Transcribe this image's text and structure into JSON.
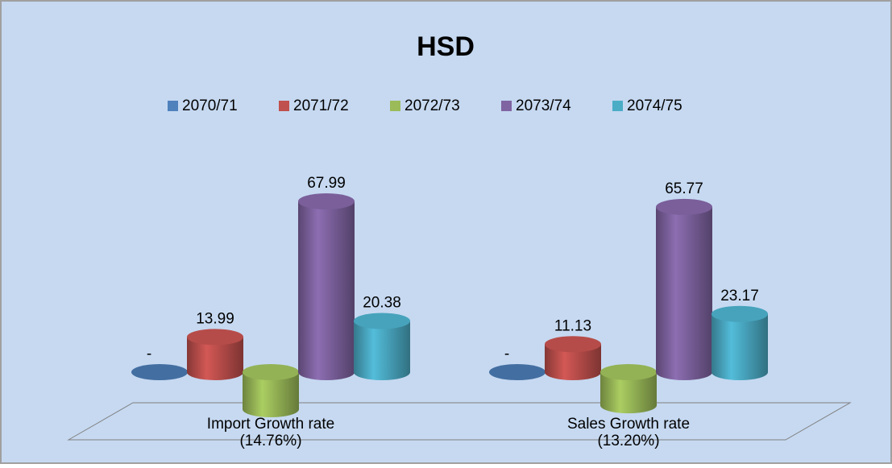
{
  "chart_data": {
    "type": "bar3d",
    "title": "HSD",
    "categories": [
      "Import Growth rate",
      "Sales Growth rate"
    ],
    "series": [
      {
        "name": "2070/71",
        "color": "#4f81bd",
        "values": [
          0,
          0
        ],
        "value_labels": [
          "-",
          "-"
        ]
      },
      {
        "name": "2071/72",
        "color": "#c0504d",
        "values": [
          13.99,
          11.13
        ]
      },
      {
        "name": "2072/73",
        "color": "#9bbb59",
        "values": [
          -14.76,
          -13.2
        ],
        "value_labels": [
          "(14.76%)",
          "(13.20%)"
        ]
      },
      {
        "name": "2073/74",
        "color": "#8064a2",
        "values": [
          67.99,
          65.77
        ]
      },
      {
        "name": "2074/75",
        "color": "#4bacc6",
        "values": [
          20.38,
          23.17
        ]
      }
    ],
    "legend": "top"
  }
}
